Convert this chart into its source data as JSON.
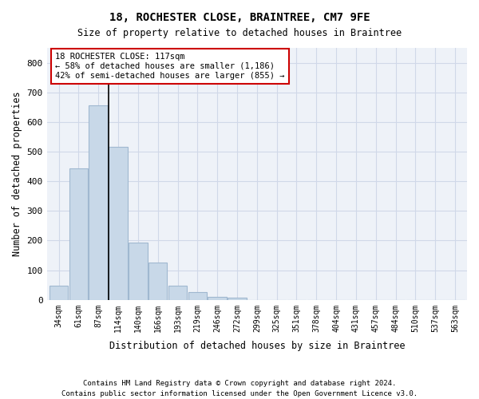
{
  "title1": "18, ROCHESTER CLOSE, BRAINTREE, CM7 9FE",
  "title2": "Size of property relative to detached houses in Braintree",
  "xlabel": "Distribution of detached houses by size in Braintree",
  "ylabel": "Number of detached properties",
  "footnote1": "Contains HM Land Registry data © Crown copyright and database right 2024.",
  "footnote2": "Contains public sector information licensed under the Open Government Licence v3.0.",
  "bins": [
    "34sqm",
    "61sqm",
    "87sqm",
    "114sqm",
    "140sqm",
    "166sqm",
    "193sqm",
    "219sqm",
    "246sqm",
    "272sqm",
    "299sqm",
    "325sqm",
    "351sqm",
    "378sqm",
    "404sqm",
    "431sqm",
    "457sqm",
    "484sqm",
    "510sqm",
    "537sqm",
    "563sqm"
  ],
  "values": [
    47,
    444,
    657,
    515,
    192,
    125,
    47,
    25,
    10,
    8,
    0,
    0,
    0,
    0,
    0,
    0,
    0,
    0,
    0,
    0,
    0
  ],
  "bar_color": "#c8d8e8",
  "bar_edge_color": "#a0b8d0",
  "grid_color": "#d0d8e8",
  "background_color": "#eef2f8",
  "annotation_text_line1": "18 ROCHESTER CLOSE: 117sqm",
  "annotation_text_line2": "← 58% of detached houses are smaller (1,186)",
  "annotation_text_line3": "42% of semi-detached houses are larger (855) →",
  "annotation_box_color": "#ffffff",
  "annotation_box_edge_color": "#cc0000",
  "subject_line_color": "#000000",
  "ylim": [
    0,
    850
  ],
  "yticks": [
    0,
    100,
    200,
    300,
    400,
    500,
    600,
    700,
    800
  ]
}
